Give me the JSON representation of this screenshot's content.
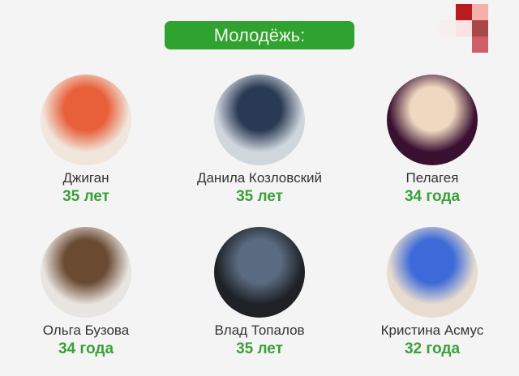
{
  "header": {
    "title": "Молодёжь:"
  },
  "colors": {
    "accent": "#2fa22f",
    "age_text": "#3aa03a"
  },
  "people": [
    {
      "name": "Джиган",
      "age": "35 лет",
      "photo_colors": [
        "#f1e6dc",
        "#e8603a"
      ]
    },
    {
      "name": "Данила Козловский",
      "age": "35 лет",
      "photo_colors": [
        "#cfd6dc",
        "#2a3a55"
      ]
    },
    {
      "name": "Пелагея",
      "age": "34 года",
      "photo_colors": [
        "#3a1030",
        "#f0d8c0"
      ]
    },
    {
      "name": "Ольга Бузова",
      "age": "34 года",
      "photo_colors": [
        "#e8e4e0",
        "#6b4a32"
      ]
    },
    {
      "name": "Влад Топалов",
      "age": "35 лет",
      "photo_colors": [
        "#1e2226",
        "#5a6a80"
      ]
    },
    {
      "name": "Кристина Асмус",
      "age": "32 года",
      "photo_colors": [
        "#e8dcd0",
        "#3c6ad8"
      ]
    }
  ]
}
